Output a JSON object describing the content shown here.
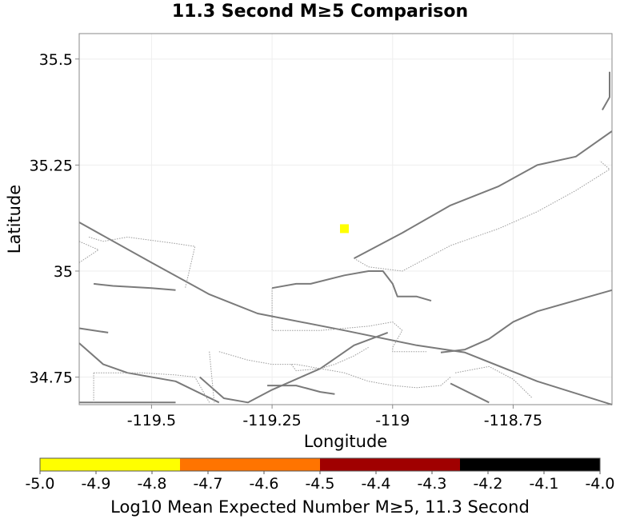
{
  "chart_data": {
    "type": "map",
    "title": "11.3 Second M≥5 Comparison",
    "xlabel": "Longitude",
    "ylabel": "Latitude",
    "xlim": [
      -119.65,
      -118.545
    ],
    "ylim": [
      34.685,
      35.56
    ],
    "x_ticks": [
      {
        "value": -119.5,
        "label": "-119.5"
      },
      {
        "value": -119.25,
        "label": "-119.25"
      },
      {
        "value": -119.0,
        "label": "-119"
      },
      {
        "value": -118.75,
        "label": "-118.75"
      }
    ],
    "y_ticks": [
      {
        "value": 35.5,
        "label": "35.5"
      },
      {
        "value": 35.25,
        "label": "35.25"
      },
      {
        "value": 35.0,
        "label": "35"
      },
      {
        "value": 34.75,
        "label": "34.75"
      }
    ],
    "grid": true,
    "cells": [
      {
        "lon": -119.1,
        "lat": 35.1,
        "value": -4.9,
        "color": "#ffff00"
      }
    ],
    "fault_traces": [
      {
        "style": "solid",
        "points": [
          [
            -119.65,
            35.115
          ],
          [
            -119.5,
            35.02
          ],
          [
            -119.38,
            34.945
          ],
          [
            -119.28,
            34.9
          ],
          [
            -119.1,
            34.86
          ],
          [
            -118.95,
            34.825
          ],
          [
            -118.85,
            34.808
          ],
          [
            -118.7,
            34.74
          ],
          [
            -118.545,
            34.685
          ]
        ]
      },
      {
        "style": "solid",
        "points": [
          [
            -119.08,
            35.03
          ],
          [
            -118.98,
            35.09
          ],
          [
            -118.88,
            35.155
          ],
          [
            -118.78,
            35.2
          ],
          [
            -118.7,
            35.25
          ],
          [
            -118.62,
            35.27
          ],
          [
            -118.545,
            35.33
          ]
        ]
      },
      {
        "style": "solid",
        "points": [
          [
            -118.55,
            35.47
          ],
          [
            -118.55,
            35.41
          ],
          [
            -118.565,
            35.38
          ]
        ]
      },
      {
        "style": "solid",
        "points": [
          [
            -119.4,
            34.75
          ],
          [
            -119.35,
            34.7
          ],
          [
            -119.3,
            34.69
          ],
          [
            -119.25,
            34.72
          ],
          [
            -119.2,
            34.745
          ],
          [
            -119.15,
            34.77
          ],
          [
            -119.08,
            34.825
          ],
          [
            -119.01,
            34.855
          ]
        ]
      },
      {
        "style": "solid",
        "points": [
          [
            -119.25,
            34.96
          ],
          [
            -119.2,
            34.97
          ],
          [
            -119.17,
            34.97
          ],
          [
            -119.1,
            34.99
          ],
          [
            -119.05,
            35.0
          ],
          [
            -119.02,
            35.0
          ],
          [
            -119.0,
            34.97
          ],
          [
            -118.99,
            34.94
          ],
          [
            -118.95,
            34.94
          ],
          [
            -118.92,
            34.93
          ]
        ]
      },
      {
        "style": "solid",
        "points": [
          [
            -118.9,
            34.808
          ],
          [
            -118.85,
            34.815
          ],
          [
            -118.8,
            34.84
          ],
          [
            -118.75,
            34.88
          ],
          [
            -118.7,
            34.905
          ],
          [
            -118.545,
            34.955
          ]
        ]
      },
      {
        "style": "solid",
        "points": [
          [
            -119.65,
            34.83
          ],
          [
            -119.6,
            34.78
          ],
          [
            -119.55,
            34.76
          ],
          [
            -119.45,
            34.74
          ],
          [
            -119.36,
            34.69
          ]
        ]
      },
      {
        "style": "solid",
        "points": [
          [
            -119.65,
            34.865
          ],
          [
            -119.59,
            34.855
          ]
        ]
      },
      {
        "style": "solid",
        "points": [
          [
            -119.62,
            34.97
          ],
          [
            -119.58,
            34.965
          ],
          [
            -119.5,
            34.96
          ],
          [
            -119.45,
            34.955
          ]
        ]
      },
      {
        "style": "solid",
        "points": [
          [
            -119.26,
            34.73
          ],
          [
            -119.2,
            34.73
          ],
          [
            -119.15,
            34.715
          ],
          [
            -119.12,
            34.71
          ]
        ]
      },
      {
        "style": "solid",
        "points": [
          [
            -118.88,
            34.735
          ],
          [
            -118.8,
            34.69
          ]
        ]
      },
      {
        "style": "solid",
        "points": [
          [
            -119.65,
            34.69
          ],
          [
            -119.45,
            34.69
          ]
        ]
      },
      {
        "style": "dotted",
        "points": [
          [
            -119.63,
            35.08
          ],
          [
            -119.6,
            35.07
          ],
          [
            -119.55,
            35.08
          ],
          [
            -119.45,
            35.065
          ],
          [
            -119.41,
            35.058
          ],
          [
            -119.43,
            34.96
          ]
        ]
      },
      {
        "style": "dotted",
        "points": [
          [
            -119.65,
            35.07
          ],
          [
            -119.61,
            35.05
          ],
          [
            -119.65,
            35.02
          ]
        ]
      },
      {
        "style": "dotted",
        "points": [
          [
            -119.25,
            34.96
          ],
          [
            -119.25,
            34.86
          ],
          [
            -119.15,
            34.86
          ],
          [
            -119.05,
            34.87
          ],
          [
            -119.0,
            34.88
          ],
          [
            -118.98,
            34.86
          ],
          [
            -119.0,
            34.82
          ],
          [
            -119.0,
            34.81
          ],
          [
            -118.93,
            34.81
          ]
        ]
      },
      {
        "style": "dotted",
        "points": [
          [
            -119.08,
            35.03
          ],
          [
            -119.05,
            35.01
          ],
          [
            -118.98,
            35.0
          ],
          [
            -118.88,
            35.06
          ],
          [
            -118.78,
            35.1
          ],
          [
            -118.7,
            35.14
          ],
          [
            -118.62,
            35.19
          ],
          [
            -118.55,
            35.24
          ],
          [
            -118.57,
            35.26
          ]
        ]
      },
      {
        "style": "dotted",
        "points": [
          [
            -119.36,
            34.81
          ],
          [
            -119.3,
            34.79
          ],
          [
            -119.25,
            34.78
          ],
          [
            -119.2,
            34.78
          ],
          [
            -119.1,
            34.76
          ],
          [
            -119.05,
            34.74
          ],
          [
            -119.0,
            34.73
          ],
          [
            -118.95,
            34.725
          ],
          [
            -118.9,
            34.73
          ],
          [
            -118.88,
            34.75
          ]
        ]
      },
      {
        "style": "dotted",
        "points": [
          [
            -119.21,
            34.78
          ],
          [
            -119.2,
            34.765
          ],
          [
            -119.15,
            34.77
          ],
          [
            -119.12,
            34.78
          ],
          [
            -119.08,
            34.8
          ],
          [
            -119.05,
            34.82
          ]
        ]
      },
      {
        "style": "dotted",
        "points": [
          [
            -119.62,
            34.76
          ],
          [
            -119.62,
            34.69
          ]
        ]
      },
      {
        "style": "dotted",
        "points": [
          [
            -119.62,
            34.76
          ],
          [
            -119.52,
            34.76
          ],
          [
            -119.45,
            34.755
          ],
          [
            -119.41,
            34.75
          ],
          [
            -119.38,
            34.69
          ]
        ]
      },
      {
        "style": "dotted",
        "points": [
          [
            -119.38,
            34.81
          ],
          [
            -119.37,
            34.69
          ]
        ]
      },
      {
        "style": "dotted",
        "points": [
          [
            -118.87,
            34.76
          ],
          [
            -118.8,
            34.775
          ],
          [
            -118.75,
            34.745
          ],
          [
            -118.71,
            34.7
          ]
        ]
      }
    ],
    "colorbar": {
      "title": "Log10 Mean Expected Number M≥5, 11.3 Second",
      "range": [
        -5.0,
        -4.0
      ],
      "segments": [
        {
          "from": -5.0,
          "to": -4.75,
          "color": "#ffff00"
        },
        {
          "from": -4.75,
          "to": -4.5,
          "color": "#ff7400"
        },
        {
          "from": -4.5,
          "to": -4.25,
          "color": "#a00000"
        },
        {
          "from": -4.25,
          "to": -4.0,
          "color": "#000000"
        }
      ],
      "ticks": [
        "-5.0",
        "-4.9",
        "-4.8",
        "-4.7",
        "-4.6",
        "-4.5",
        "-4.4",
        "-4.3",
        "-4.2",
        "-4.1",
        "-4.0"
      ]
    }
  }
}
